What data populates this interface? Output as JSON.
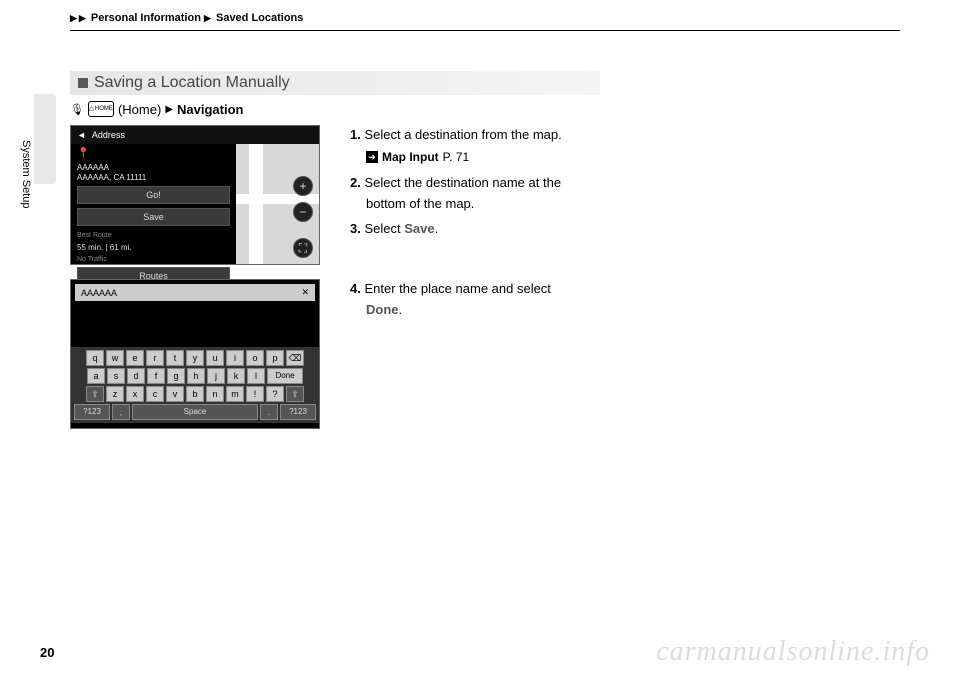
{
  "breadcrumb": {
    "part1": "Personal Information",
    "part2": "Saved Locations"
  },
  "side_tab": "System Setup",
  "section_title": "Saving a Location Manually",
  "nav_line": {
    "home_label": "HOME",
    "home_paren": "(Home)",
    "navigation": "Navigation"
  },
  "shot1": {
    "topbar": "Address",
    "addr1": "AAAAAA",
    "addr2": "AAAAAA, CA 11111",
    "go": "Go!",
    "save": "Save",
    "best": "Best Route",
    "eta": "55 min. | 61 mi.",
    "traffic": "No Traffic",
    "routes": "Routes"
  },
  "shot2": {
    "input_value": "AAAAAA",
    "row1": [
      "q",
      "w",
      "e",
      "r",
      "t",
      "y",
      "u",
      "i",
      "o",
      "p",
      "⌫"
    ],
    "row2": [
      "a",
      "s",
      "d",
      "f",
      "g",
      "h",
      "j",
      "k",
      "l"
    ],
    "done": "Done",
    "row3": [
      "z",
      "x",
      "c",
      "v",
      "b",
      "n",
      "m",
      "!",
      "?"
    ],
    "sym": "?123",
    "space": "Space"
  },
  "steps": {
    "s1": "Select a destination from the map.",
    "ref_label": "Map Input",
    "ref_page": "P. 71",
    "s2a": "Select the destination name at the",
    "s2b": "bottom of the map.",
    "s3a": "Select ",
    "s3b": "Save",
    "s3c": ".",
    "s4a": "Enter the place name and select",
    "s4b": "Done",
    "s4c": "."
  },
  "page_number": "20",
  "watermark": "carmanualsonline.info"
}
